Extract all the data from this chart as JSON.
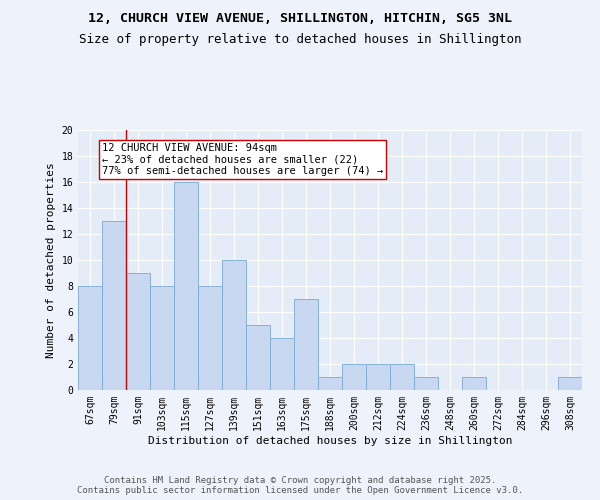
{
  "title_line1": "12, CHURCH VIEW AVENUE, SHILLINGTON, HITCHIN, SG5 3NL",
  "title_line2": "Size of property relative to detached houses in Shillington",
  "xlabel": "Distribution of detached houses by size in Shillington",
  "ylabel": "Number of detached properties",
  "categories": [
    "67sqm",
    "79sqm",
    "91sqm",
    "103sqm",
    "115sqm",
    "127sqm",
    "139sqm",
    "151sqm",
    "163sqm",
    "175sqm",
    "188sqm",
    "200sqm",
    "212sqm",
    "224sqm",
    "236sqm",
    "248sqm",
    "260sqm",
    "272sqm",
    "284sqm",
    "296sqm",
    "308sqm"
  ],
  "values": [
    8,
    13,
    9,
    8,
    16,
    8,
    10,
    5,
    4,
    7,
    1,
    2,
    2,
    2,
    1,
    0,
    1,
    0,
    0,
    0,
    1
  ],
  "bar_color": "#c8d8f0",
  "bar_edge_color": "#7aaad4",
  "vline_color": "#cc0000",
  "annotation_text": "12 CHURCH VIEW AVENUE: 94sqm\n← 23% of detached houses are smaller (22)\n77% of semi-detached houses are larger (74) →",
  "annotation_box_color": "white",
  "annotation_box_edge_color": "#cc0000",
  "ylim": [
    0,
    20
  ],
  "yticks": [
    0,
    2,
    4,
    6,
    8,
    10,
    12,
    14,
    16,
    18,
    20
  ],
  "background_color": "#eef2fa",
  "plot_background": "#e4ecf7",
  "grid_color": "#ffffff",
  "footer": "Contains HM Land Registry data © Crown copyright and database right 2025.\nContains public sector information licensed under the Open Government Licence v3.0.",
  "title_fontsize": 9.5,
  "subtitle_fontsize": 9,
  "xlabel_fontsize": 8,
  "ylabel_fontsize": 8,
  "tick_fontsize": 7,
  "annot_fontsize": 7.5,
  "footer_fontsize": 6.5
}
